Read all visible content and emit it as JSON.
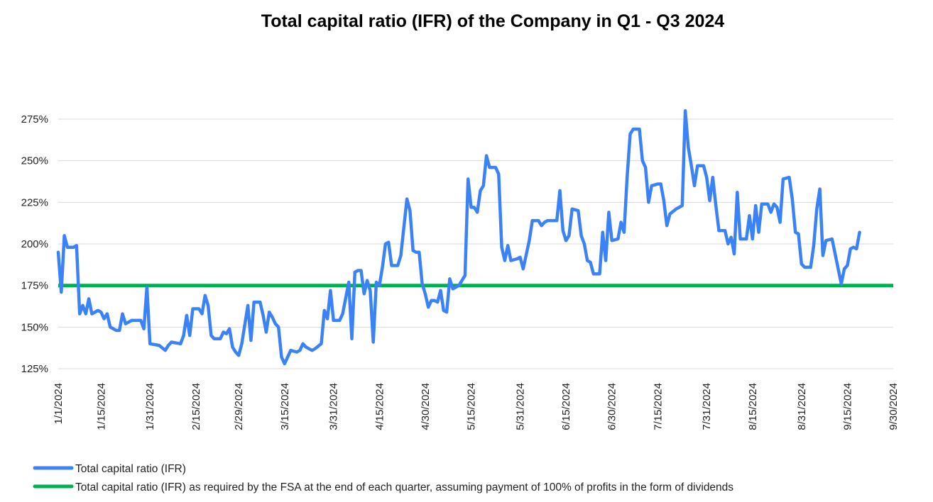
{
  "chart_data": {
    "type": "line",
    "title": "Total capital ratio (IFR) of the Company in Q1 - Q3 2024",
    "xlabel": "",
    "ylabel": "",
    "x_ticks": [
      "1/1/2024",
      "1/15/2024",
      "1/31/2024",
      "2/15/2024",
      "2/29/2024",
      "3/15/2024",
      "3/31/2024",
      "4/15/2024",
      "4/30/2024",
      "5/15/2024",
      "5/31/2024",
      "6/15/2024",
      "6/30/2024",
      "7/15/2024",
      "7/31/2024",
      "8/15/2024",
      "8/31/2024",
      "9/15/2024",
      "9/30/2024"
    ],
    "y_ticks": [
      "125%",
      "150%",
      "175%",
      "200%",
      "225%",
      "250%",
      "275%"
    ],
    "ylim": [
      122,
      283
    ],
    "grid": true,
    "legend_position": "bottom",
    "colors": {
      "series1": "#3b82f6",
      "series2": "#00b050",
      "grid": "#d9d9d9"
    },
    "series": [
      {
        "name": "Total capital ratio (IFR)",
        "points": [
          [
            "2024-01-01",
            195
          ],
          [
            "2024-01-02",
            171
          ],
          [
            "2024-01-03",
            205
          ],
          [
            "2024-01-04",
            198
          ],
          [
            "2024-01-06",
            198
          ],
          [
            "2024-01-07",
            199
          ],
          [
            "2024-01-08",
            158
          ],
          [
            "2024-01-09",
            163
          ],
          [
            "2024-01-10",
            158
          ],
          [
            "2024-01-11",
            167
          ],
          [
            "2024-01-12",
            158
          ],
          [
            "2024-01-14",
            160
          ],
          [
            "2024-01-15",
            159
          ],
          [
            "2024-01-16",
            155
          ],
          [
            "2024-01-17",
            158
          ],
          [
            "2024-01-18",
            150
          ],
          [
            "2024-01-20",
            148
          ],
          [
            "2024-01-21",
            148
          ],
          [
            "2024-01-22",
            158
          ],
          [
            "2024-01-23",
            152
          ],
          [
            "2024-01-24",
            153
          ],
          [
            "2024-01-25",
            154
          ],
          [
            "2024-01-28",
            154
          ],
          [
            "2024-01-29",
            149
          ],
          [
            "2024-01-30",
            174
          ],
          [
            "2024-01-31",
            140
          ],
          [
            "2024-02-03",
            139
          ],
          [
            "2024-02-05",
            136
          ],
          [
            "2024-02-06",
            139
          ],
          [
            "2024-02-07",
            141
          ],
          [
            "2024-02-10",
            140
          ],
          [
            "2024-02-11",
            145
          ],
          [
            "2024-02-12",
            157
          ],
          [
            "2024-02-13",
            145
          ],
          [
            "2024-02-14",
            161
          ],
          [
            "2024-02-16",
            161
          ],
          [
            "2024-02-17",
            158
          ],
          [
            "2024-02-18",
            169
          ],
          [
            "2024-02-19",
            163
          ],
          [
            "2024-02-20",
            145
          ],
          [
            "2024-02-21",
            143
          ],
          [
            "2024-02-23",
            143
          ],
          [
            "2024-02-24",
            147
          ],
          [
            "2024-02-25",
            146
          ],
          [
            "2024-02-26",
            149
          ],
          [
            "2024-02-27",
            138
          ],
          [
            "2024-02-28",
            135
          ],
          [
            "2024-02-29",
            133
          ],
          [
            "2024-03-01",
            140
          ],
          [
            "2024-03-03",
            163
          ],
          [
            "2024-03-04",
            142
          ],
          [
            "2024-03-05",
            165
          ],
          [
            "2024-03-07",
            165
          ],
          [
            "2024-03-08",
            157
          ],
          [
            "2024-03-09",
            147
          ],
          [
            "2024-03-10",
            159
          ],
          [
            "2024-03-11",
            156
          ],
          [
            "2024-03-12",
            152
          ],
          [
            "2024-03-13",
            150
          ],
          [
            "2024-03-14",
            132
          ],
          [
            "2024-03-15",
            128
          ],
          [
            "2024-03-17",
            136
          ],
          [
            "2024-03-19",
            135
          ],
          [
            "2024-03-20",
            136
          ],
          [
            "2024-03-21",
            140
          ],
          [
            "2024-03-22",
            138
          ],
          [
            "2024-03-24",
            136
          ],
          [
            "2024-03-25",
            137
          ],
          [
            "2024-03-27",
            140
          ],
          [
            "2024-03-28",
            160
          ],
          [
            "2024-03-29",
            155
          ],
          [
            "2024-03-30",
            172
          ],
          [
            "2024-03-31",
            154
          ],
          [
            "2024-04-02",
            154
          ],
          [
            "2024-04-03",
            158
          ],
          [
            "2024-04-05",
            177
          ],
          [
            "2024-04-06",
            143
          ],
          [
            "2024-04-07",
            183
          ],
          [
            "2024-04-08",
            184
          ],
          [
            "2024-04-09",
            184
          ],
          [
            "2024-04-10",
            170
          ],
          [
            "2024-04-11",
            178
          ],
          [
            "2024-04-12",
            172
          ],
          [
            "2024-04-13",
            141
          ],
          [
            "2024-04-14",
            177
          ],
          [
            "2024-04-15",
            175
          ],
          [
            "2024-04-16",
            186
          ],
          [
            "2024-04-17",
            200
          ],
          [
            "2024-04-18",
            201
          ],
          [
            "2024-04-19",
            187
          ],
          [
            "2024-04-21",
            187
          ],
          [
            "2024-04-22",
            193
          ],
          [
            "2024-04-23",
            210
          ],
          [
            "2024-04-24",
            227
          ],
          [
            "2024-04-25",
            220
          ],
          [
            "2024-04-26",
            196
          ],
          [
            "2024-04-27",
            195
          ],
          [
            "2024-04-28",
            195
          ],
          [
            "2024-04-29",
            176
          ],
          [
            "2024-04-30",
            170
          ],
          [
            "2024-05-01",
            162
          ],
          [
            "2024-05-02",
            166
          ],
          [
            "2024-05-03",
            166
          ],
          [
            "2024-05-04",
            165
          ],
          [
            "2024-05-05",
            172
          ],
          [
            "2024-05-06",
            160
          ],
          [
            "2024-05-07",
            159
          ],
          [
            "2024-05-08",
            179
          ],
          [
            "2024-05-09",
            173
          ],
          [
            "2024-05-10",
            174
          ],
          [
            "2024-05-11",
            175
          ],
          [
            "2024-05-12",
            178
          ],
          [
            "2024-05-13",
            181
          ],
          [
            "2024-05-14",
            239
          ],
          [
            "2024-05-15",
            222
          ],
          [
            "2024-05-16",
            222
          ],
          [
            "2024-05-17",
            219
          ],
          [
            "2024-05-18",
            232
          ],
          [
            "2024-05-19",
            235
          ],
          [
            "2024-05-20",
            253
          ],
          [
            "2024-05-21",
            246
          ],
          [
            "2024-05-23",
            246
          ],
          [
            "2024-05-24",
            242
          ],
          [
            "2024-05-25",
            198
          ],
          [
            "2024-05-26",
            190
          ],
          [
            "2024-05-27",
            199
          ],
          [
            "2024-05-28",
            190
          ],
          [
            "2024-05-30",
            191
          ],
          [
            "2024-05-31",
            192
          ],
          [
            "2024-06-01",
            185
          ],
          [
            "2024-06-03",
            202
          ],
          [
            "2024-06-04",
            214
          ],
          [
            "2024-06-05",
            214
          ],
          [
            "2024-06-06",
            214
          ],
          [
            "2024-06-07",
            211
          ],
          [
            "2024-06-08",
            213
          ],
          [
            "2024-06-09",
            214
          ],
          [
            "2024-06-11",
            214
          ],
          [
            "2024-06-12",
            214
          ],
          [
            "2024-06-13",
            232
          ],
          [
            "2024-06-14",
            208
          ],
          [
            "2024-06-15",
            202
          ],
          [
            "2024-06-16",
            205
          ],
          [
            "2024-06-17",
            221
          ],
          [
            "2024-06-19",
            220
          ],
          [
            "2024-06-20",
            205
          ],
          [
            "2024-06-21",
            200
          ],
          [
            "2024-06-22",
            190
          ],
          [
            "2024-06-23",
            189
          ],
          [
            "2024-06-24",
            182
          ],
          [
            "2024-06-26",
            182
          ],
          [
            "2024-06-27",
            207
          ],
          [
            "2024-06-28",
            190
          ],
          [
            "2024-06-29",
            219
          ],
          [
            "2024-06-30",
            202
          ],
          [
            "2024-07-02",
            203
          ],
          [
            "2024-07-03",
            213
          ],
          [
            "2024-07-04",
            207
          ],
          [
            "2024-07-05",
            240
          ],
          [
            "2024-07-06",
            266
          ],
          [
            "2024-07-07",
            269
          ],
          [
            "2024-07-09",
            269
          ],
          [
            "2024-07-10",
            250
          ],
          [
            "2024-07-11",
            246
          ],
          [
            "2024-07-12",
            225
          ],
          [
            "2024-07-13",
            235
          ],
          [
            "2024-07-15",
            236
          ],
          [
            "2024-07-16",
            236
          ],
          [
            "2024-07-17",
            226
          ],
          [
            "2024-07-18",
            211
          ],
          [
            "2024-07-19",
            218
          ],
          [
            "2024-07-21",
            221
          ],
          [
            "2024-07-22",
            222
          ],
          [
            "2024-07-23",
            223
          ],
          [
            "2024-07-24",
            280
          ],
          [
            "2024-07-25",
            258
          ],
          [
            "2024-07-26",
            247
          ],
          [
            "2024-07-27",
            235
          ],
          [
            "2024-07-28",
            247
          ],
          [
            "2024-07-30",
            247
          ],
          [
            "2024-07-31",
            240
          ],
          [
            "2024-08-01",
            226
          ],
          [
            "2024-08-02",
            240
          ],
          [
            "2024-08-03",
            223
          ],
          [
            "2024-08-04",
            208
          ],
          [
            "2024-08-06",
            208
          ],
          [
            "2024-08-07",
            200
          ],
          [
            "2024-08-08",
            204
          ],
          [
            "2024-08-09",
            194
          ],
          [
            "2024-08-10",
            231
          ],
          [
            "2024-08-11",
            203
          ],
          [
            "2024-08-13",
            203
          ],
          [
            "2024-08-14",
            217
          ],
          [
            "2024-08-15",
            203
          ],
          [
            "2024-08-16",
            223
          ],
          [
            "2024-08-17",
            207
          ],
          [
            "2024-08-18",
            224
          ],
          [
            "2024-08-20",
            224
          ],
          [
            "2024-08-21",
            219
          ],
          [
            "2024-08-22",
            224
          ],
          [
            "2024-08-23",
            222
          ],
          [
            "2024-08-24",
            213
          ],
          [
            "2024-08-25",
            239
          ],
          [
            "2024-08-27",
            240
          ],
          [
            "2024-08-28",
            227
          ],
          [
            "2024-08-29",
            207
          ],
          [
            "2024-08-30",
            206
          ],
          [
            "2024-08-31",
            188
          ],
          [
            "2024-09-01",
            186
          ],
          [
            "2024-09-03",
            186
          ],
          [
            "2024-09-04",
            199
          ],
          [
            "2024-09-05",
            221
          ],
          [
            "2024-09-06",
            233
          ],
          [
            "2024-09-07",
            193
          ],
          [
            "2024-09-08",
            202
          ],
          [
            "2024-09-10",
            203
          ],
          [
            "2024-09-12",
            185
          ],
          [
            "2024-09-13",
            176
          ],
          [
            "2024-09-14",
            185
          ],
          [
            "2024-09-15",
            187
          ],
          [
            "2024-09-16",
            197
          ],
          [
            "2024-09-17",
            198
          ],
          [
            "2024-09-18",
            197
          ],
          [
            "2024-09-19",
            207
          ]
        ]
      },
      {
        "name": "Total capital ratio (IFR) as required by the FSA at the end of each quarter, assuming payment of 100% of profits in the form of dividends",
        "points": [
          [
            "2024-01-01",
            175
          ],
          [
            "2024-09-30",
            175
          ]
        ]
      }
    ]
  }
}
